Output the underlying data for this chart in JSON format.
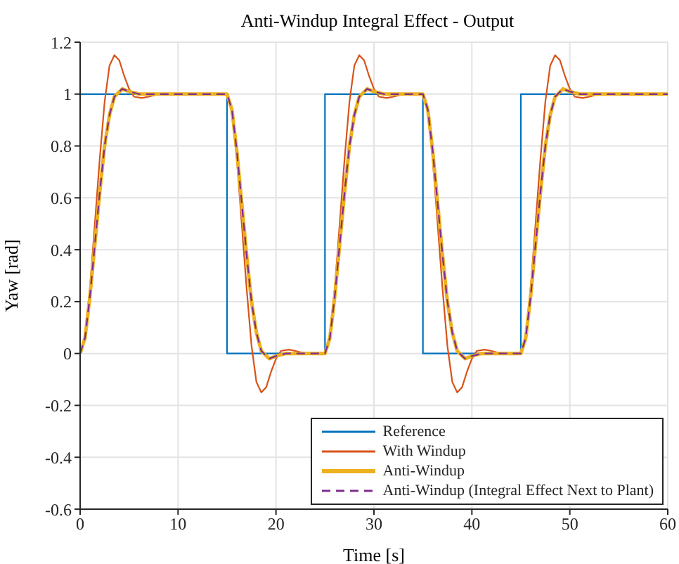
{
  "chart_data": {
    "type": "line",
    "title": "Anti-Windup Integral Effect - Output",
    "xlabel": "Time [s]",
    "ylabel": "Yaw [rad]",
    "xlim": [
      0,
      60
    ],
    "xticks": [
      0,
      10,
      20,
      30,
      40,
      50,
      60
    ],
    "ylim": [
      -0.6,
      1.2
    ],
    "yticks": [
      -0.6,
      -0.4,
      -0.2,
      0,
      0.2,
      0.4,
      0.6,
      0.8,
      1,
      1.2
    ],
    "grid": true,
    "legend": "bottom right",
    "marker": "none",
    "series": [
      {
        "name": "Reference",
        "type": "step",
        "color": "#0072bd",
        "x": [
          0,
          15,
          25,
          35,
          45,
          60
        ],
        "values": [
          1,
          0,
          1,
          0,
          1,
          1
        ]
      },
      {
        "name": "With Windup",
        "type": "line",
        "color": "#d95319",
        "x": [
          0,
          0.5,
          1,
          1.5,
          2,
          2.5,
          3,
          3.5,
          4,
          4.5,
          5,
          5.5,
          6.3,
          7,
          8,
          15,
          15.5,
          16,
          16.5,
          17,
          17.5,
          18,
          18.5,
          19,
          19.5,
          20,
          20.5,
          21.3,
          22,
          23,
          25,
          25.5,
          26,
          26.5,
          27,
          27.5,
          28,
          28.5,
          29,
          29.5,
          30,
          30.5,
          31.3,
          32,
          33,
          35,
          35.5,
          36,
          36.5,
          37,
          37.5,
          38,
          38.5,
          39,
          39.5,
          40,
          40.5,
          41.3,
          42,
          43,
          45,
          45.5,
          46,
          46.5,
          47,
          47.5,
          48,
          48.5,
          49,
          49.5,
          50,
          50.5,
          51.3,
          52,
          53,
          60
        ],
        "values": [
          0,
          0.07,
          0.25,
          0.5,
          0.75,
          0.97,
          1.11,
          1.15,
          1.13,
          1.07,
          1.02,
          0.99,
          0.985,
          0.99,
          1,
          1,
          0.93,
          0.75,
          0.5,
          0.25,
          0.03,
          -0.11,
          -0.15,
          -0.13,
          -0.07,
          -0.02,
          0.01,
          0.015,
          0.01,
          0,
          0,
          0.07,
          0.25,
          0.5,
          0.75,
          0.97,
          1.11,
          1.15,
          1.13,
          1.07,
          1.02,
          0.99,
          0.985,
          0.99,
          1,
          1,
          0.93,
          0.75,
          0.5,
          0.25,
          0.03,
          -0.11,
          -0.15,
          -0.13,
          -0.07,
          -0.02,
          0.01,
          0.015,
          0.01,
          0,
          0,
          0.07,
          0.25,
          0.5,
          0.75,
          0.97,
          1.11,
          1.15,
          1.13,
          1.07,
          1.02,
          0.99,
          0.985,
          0.99,
          1,
          1
        ]
      },
      {
        "name": "Anti-Windup",
        "type": "line",
        "color": "#edb120",
        "x": [
          0,
          0.5,
          1,
          1.5,
          2,
          2.5,
          3,
          3.5,
          4.3,
          5,
          6,
          15,
          15.5,
          16,
          16.5,
          17,
          17.5,
          18,
          18.5,
          19.3,
          20,
          21,
          25,
          25.5,
          26,
          26.5,
          27,
          27.5,
          28,
          28.5,
          29.3,
          30,
          31,
          35,
          35.5,
          36,
          36.5,
          37,
          37.5,
          38,
          38.5,
          39.3,
          40,
          41,
          45,
          45.5,
          46,
          46.5,
          47,
          47.5,
          48,
          48.5,
          49.3,
          50,
          51,
          60
        ],
        "values": [
          0,
          0.06,
          0.22,
          0.42,
          0.62,
          0.8,
          0.92,
          0.99,
          1.02,
          1.01,
          1,
          1,
          0.94,
          0.78,
          0.58,
          0.38,
          0.2,
          0.08,
          0.01,
          -0.02,
          -0.01,
          0,
          0,
          0.06,
          0.22,
          0.42,
          0.62,
          0.8,
          0.92,
          0.99,
          1.02,
          1.01,
          1,
          1,
          0.94,
          0.78,
          0.58,
          0.38,
          0.2,
          0.08,
          0.01,
          -0.02,
          -0.01,
          0,
          0,
          0.06,
          0.22,
          0.42,
          0.62,
          0.8,
          0.92,
          0.99,
          1.02,
          1.01,
          1,
          1
        ]
      },
      {
        "name": "Anti-Windup (Integral Effect Next to Plant)",
        "type": "line",
        "color": "#7e2f8e",
        "line_style": "dashed",
        "x": [
          0,
          0.5,
          1,
          1.5,
          2,
          2.5,
          3,
          3.5,
          4.3,
          5,
          6,
          15,
          15.5,
          16,
          16.5,
          17,
          17.5,
          18,
          18.5,
          19.3,
          20,
          21,
          25,
          25.5,
          26,
          26.5,
          27,
          27.5,
          28,
          28.5,
          29.3,
          30,
          31,
          35,
          35.5,
          36,
          36.5,
          37,
          37.5,
          38,
          38.5,
          39.3,
          40,
          41,
          45,
          45.5,
          46,
          46.5,
          47,
          47.5,
          48,
          48.5,
          49.3,
          50,
          51,
          60
        ],
        "values": [
          0,
          0.06,
          0.22,
          0.42,
          0.62,
          0.8,
          0.92,
          0.99,
          1.02,
          1.01,
          1,
          1,
          0.94,
          0.78,
          0.58,
          0.38,
          0.2,
          0.08,
          0.01,
          -0.02,
          -0.01,
          0,
          0,
          0.06,
          0.22,
          0.42,
          0.62,
          0.8,
          0.92,
          0.99,
          1.02,
          1.01,
          1,
          1,
          0.94,
          0.78,
          0.58,
          0.38,
          0.2,
          0.08,
          0.01,
          -0.02,
          -0.01,
          0,
          0,
          0.06,
          0.22,
          0.42,
          0.62,
          0.8,
          0.92,
          0.99,
          1.02,
          1.01,
          1,
          1
        ]
      }
    ]
  }
}
